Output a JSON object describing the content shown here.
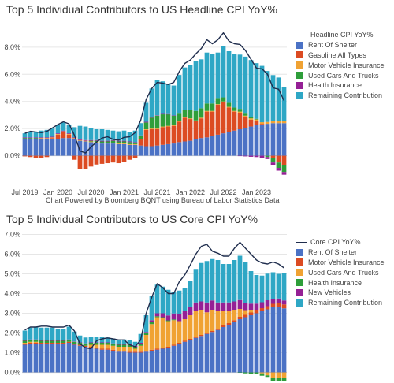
{
  "chart_data": [
    {
      "type": "bar",
      "title": "Top 5 Individual Contributors to US Headline CPI YoY%",
      "xlabel": "",
      "ylabel": "",
      "ylim": [
        -2.0,
        9.5
      ],
      "yticks": [
        0,
        2,
        4,
        6,
        8
      ],
      "tick_suffix": "%",
      "x_ticks": [
        "Jul 2019",
        "Jan 2020",
        "Jul 2020",
        "Jan 2021",
        "Jul 2021",
        "Jan 2022",
        "Jul 2022",
        "Jan 2023"
      ],
      "x_tick_index": [
        0,
        6,
        12,
        18,
        24,
        30,
        36,
        42
      ],
      "categories": [
        "2019-06",
        "2019-07",
        "2019-08",
        "2019-09",
        "2019-10",
        "2019-11",
        "2019-12",
        "2020-01",
        "2020-02",
        "2020-03",
        "2020-04",
        "2020-05",
        "2020-06",
        "2020-07",
        "2020-08",
        "2020-09",
        "2020-10",
        "2020-11",
        "2020-12",
        "2021-01",
        "2021-02",
        "2021-03",
        "2021-04",
        "2021-05",
        "2021-06",
        "2021-07",
        "2021-08",
        "2021-09",
        "2021-10",
        "2021-11",
        "2021-12",
        "2022-01",
        "2022-02",
        "2022-03",
        "2022-04",
        "2022-05",
        "2022-06",
        "2022-07",
        "2022-08",
        "2022-09",
        "2022-10",
        "2022-11",
        "2022-12",
        "2023-01",
        "2023-02",
        "2023-03",
        "2023-04",
        "2023-05"
      ],
      "grid": true,
      "legend_position": "right",
      "series": [
        {
          "name": "Rent Of Shelter",
          "color": "#4b72c5",
          "values": [
            1.2,
            1.2,
            1.2,
            1.25,
            1.25,
            1.25,
            1.25,
            1.3,
            1.3,
            1.25,
            1.1,
            1.05,
            1.0,
            0.95,
            0.9,
            0.9,
            0.9,
            0.85,
            0.85,
            0.8,
            0.8,
            0.75,
            0.7,
            0.7,
            0.75,
            0.8,
            0.85,
            0.9,
            1.0,
            1.05,
            1.1,
            1.2,
            1.3,
            1.35,
            1.45,
            1.55,
            1.65,
            1.75,
            1.85,
            1.95,
            2.05,
            2.15,
            2.25,
            2.3,
            2.35,
            2.4,
            2.4,
            2.4
          ]
        },
        {
          "name": "Gasoline All Types",
          "color": "#dc4b22",
          "values": [
            -0.05,
            -0.1,
            -0.15,
            -0.15,
            -0.1,
            0.05,
            0.3,
            0.45,
            0.25,
            -0.3,
            -1.0,
            -1.0,
            -0.8,
            -0.65,
            -0.6,
            -0.55,
            -0.5,
            -0.55,
            -0.45,
            -0.3,
            -0.2,
            0.45,
            1.2,
            1.25,
            1.2,
            1.3,
            1.3,
            1.3,
            1.5,
            1.75,
            1.6,
            1.35,
            1.45,
            1.9,
            1.8,
            2.2,
            2.3,
            1.8,
            1.4,
            1.2,
            0.8,
            0.5,
            0.3,
            0.05,
            0.0,
            -0.2,
            -0.5,
            -0.7
          ]
        },
        {
          "name": "Motor Vehicle Insurance",
          "color": "#f0a233",
          "values": [
            0.05,
            0.05,
            0.05,
            0.05,
            0.05,
            0.05,
            0.05,
            0.05,
            0.05,
            0.05,
            0.05,
            0.05,
            0.05,
            0.05,
            0.05,
            0.05,
            0.05,
            0.05,
            0.05,
            0.05,
            0.05,
            0.05,
            0.05,
            0.05,
            0.05,
            0.05,
            0.05,
            0.05,
            0.05,
            0.05,
            0.05,
            0.05,
            0.05,
            0.05,
            0.05,
            0.05,
            0.05,
            0.05,
            0.05,
            0.1,
            0.1,
            0.1,
            0.12,
            0.12,
            0.14,
            0.14,
            0.16,
            0.16
          ]
        },
        {
          "name": "Used Cars And Trucks",
          "color": "#2e9e3a",
          "values": [
            0.05,
            0.05,
            0.05,
            0.0,
            0.0,
            0.0,
            0.0,
            0.0,
            0.0,
            0.0,
            0.0,
            0.0,
            0.05,
            0.1,
            0.1,
            0.1,
            0.15,
            0.15,
            0.15,
            0.15,
            0.1,
            0.2,
            0.5,
            0.8,
            0.95,
            0.9,
            0.85,
            0.7,
            0.55,
            0.55,
            0.65,
            0.7,
            0.7,
            0.55,
            0.55,
            0.45,
            0.3,
            0.3,
            0.25,
            0.2,
            0.15,
            0.1,
            0.05,
            0.0,
            -0.1,
            -0.3,
            -0.4,
            -0.5
          ]
        },
        {
          "name": "Health Insurance",
          "color": "#952095",
          "values": [
            0.05,
            0.05,
            0.05,
            0.05,
            0.05,
            0.05,
            0.05,
            0.05,
            0.05,
            0.05,
            0.05,
            0.05,
            0.05,
            0.05,
            0.05,
            0.05,
            0.05,
            0.05,
            0.05,
            0.05,
            0.05,
            0.05,
            0.05,
            0.05,
            0.03,
            0.03,
            0.02,
            0.02,
            0.0,
            0.0,
            0.0,
            0.0,
            0.0,
            0.0,
            0.0,
            0.0,
            0.0,
            0.0,
            0.0,
            -0.02,
            -0.05,
            -0.08,
            -0.1,
            -0.15,
            -0.15,
            -0.18,
            -0.2,
            -0.2
          ]
        },
        {
          "name": "Remaining Contribution",
          "color": "#2ea7c5",
          "values": [
            0.3,
            0.4,
            0.4,
            0.5,
            0.55,
            0.6,
            0.6,
            0.6,
            0.65,
            0.75,
            1.0,
            1.0,
            0.9,
            0.8,
            0.85,
            0.8,
            0.7,
            0.7,
            0.75,
            0.7,
            0.85,
            0.9,
            1.4,
            2.1,
            2.6,
            2.4,
            2.2,
            2.2,
            2.85,
            3.1,
            3.3,
            3.7,
            3.6,
            3.75,
            3.65,
            3.35,
            3.8,
            3.8,
            3.95,
            4.0,
            4.2,
            4.2,
            4.1,
            4.15,
            3.75,
            3.4,
            3.2,
            2.5
          ]
        },
        {
          "name": "Headline CPI YoY%",
          "type": "line",
          "color": "#1f2d4d",
          "values": [
            1.65,
            1.8,
            1.75,
            1.7,
            1.8,
            2.05,
            2.3,
            2.5,
            2.35,
            1.5,
            0.35,
            0.2,
            0.65,
            1.0,
            1.3,
            1.4,
            1.2,
            1.15,
            1.35,
            1.4,
            1.7,
            2.6,
            4.15,
            4.95,
            5.4,
            5.35,
            5.25,
            5.4,
            6.2,
            6.8,
            7.05,
            7.5,
            7.9,
            8.55,
            8.25,
            8.55,
            9.05,
            8.45,
            8.25,
            8.2,
            7.75,
            7.1,
            6.45,
            6.4,
            6.0,
            5.0,
            4.9,
            4.05
          ]
        }
      ]
    },
    {
      "type": "bar",
      "title": "Top 5 Individual Contributors to US Core CPI YoY%",
      "xlabel": "",
      "ylabel": "",
      "ylim": [
        -0.3,
        7.3
      ],
      "yticks": [
        0,
        1,
        2,
        3,
        4,
        5,
        6,
        7
      ],
      "tick_suffix": "%",
      "categories": [
        "2019-06",
        "2019-07",
        "2019-08",
        "2019-09",
        "2019-10",
        "2019-11",
        "2019-12",
        "2020-01",
        "2020-02",
        "2020-03",
        "2020-04",
        "2020-05",
        "2020-06",
        "2020-07",
        "2020-08",
        "2020-09",
        "2020-10",
        "2020-11",
        "2020-12",
        "2021-01",
        "2021-02",
        "2021-03",
        "2021-04",
        "2021-05",
        "2021-06",
        "2021-07",
        "2021-08",
        "2021-09",
        "2021-10",
        "2021-11",
        "2021-12",
        "2022-01",
        "2022-02",
        "2022-03",
        "2022-04",
        "2022-05",
        "2022-06",
        "2022-07",
        "2022-08",
        "2022-09",
        "2022-10",
        "2022-11",
        "2022-12",
        "2023-01",
        "2023-02",
        "2023-03",
        "2023-04",
        "2023-05"
      ],
      "grid": true,
      "legend_position": "right",
      "series": [
        {
          "name": "Rent Of Shelter",
          "color": "#4b72c5",
          "values": [
            1.4,
            1.45,
            1.45,
            1.45,
            1.45,
            1.45,
            1.45,
            1.45,
            1.5,
            1.4,
            1.35,
            1.3,
            1.25,
            1.2,
            1.15,
            1.15,
            1.1,
            1.05,
            1.05,
            1.0,
            1.0,
            1.0,
            1.05,
            1.1,
            1.15,
            1.2,
            1.25,
            1.35,
            1.45,
            1.55,
            1.65,
            1.75,
            1.85,
            1.95,
            2.05,
            2.15,
            2.3,
            2.4,
            2.55,
            2.7,
            2.8,
            2.9,
            3.0,
            3.1,
            3.2,
            3.3,
            3.3,
            3.25
          ]
        },
        {
          "name": "Motor Vehicle Insurance",
          "color": "#dc4b22",
          "values": [
            0.05,
            0.05,
            0.05,
            0.05,
            0.05,
            0.05,
            0.05,
            0.05,
            0.05,
            0.05,
            0.05,
            0.05,
            0.05,
            0.05,
            0.05,
            0.05,
            0.05,
            0.05,
            0.05,
            0.05,
            0.05,
            0.05,
            0.05,
            0.05,
            0.05,
            0.05,
            0.05,
            0.05,
            0.05,
            0.05,
            0.05,
            0.05,
            0.05,
            0.05,
            0.05,
            0.05,
            0.1,
            0.1,
            0.1,
            0.12,
            0.12,
            0.14,
            0.14,
            0.16,
            0.16,
            0.18,
            0.2,
            0.2
          ]
        },
        {
          "name": "Used Cars And Trucks",
          "color": "#f0a233",
          "values": [
            0.05,
            0.05,
            0.05,
            0.0,
            0.0,
            0.0,
            0.0,
            0.0,
            0.0,
            0.0,
            0.0,
            0.0,
            0.1,
            0.15,
            0.2,
            0.2,
            0.2,
            0.2,
            0.2,
            0.25,
            0.15,
            0.3,
            0.8,
            1.3,
            1.6,
            1.5,
            1.3,
            1.25,
            1.1,
            1.1,
            1.2,
            1.3,
            1.25,
            1.05,
            1.05,
            0.9,
            0.7,
            0.6,
            0.5,
            0.4,
            0.2,
            0.1,
            0.0,
            -0.05,
            -0.15,
            -0.3,
            -0.3,
            -0.3
          ]
        },
        {
          "name": "Health Insurance",
          "color": "#2e9e3a",
          "values": [
            0.1,
            0.1,
            0.1,
            0.1,
            0.1,
            0.1,
            0.1,
            0.1,
            0.1,
            0.1,
            0.1,
            0.1,
            0.1,
            0.1,
            0.1,
            0.1,
            0.1,
            0.1,
            0.1,
            0.1,
            0.1,
            0.1,
            0.1,
            0.1,
            0.05,
            0.05,
            0.04,
            0.04,
            0.0,
            0.0,
            0.0,
            0.0,
            0.0,
            0.0,
            0.0,
            0.0,
            0.0,
            0.0,
            0.0,
            -0.02,
            -0.05,
            -0.08,
            -0.1,
            -0.12,
            -0.12,
            -0.12,
            -0.12,
            -0.12
          ]
        },
        {
          "name": "New Vehicles",
          "color": "#952095",
          "values": [
            0.02,
            0.02,
            0.02,
            0.02,
            0.02,
            0.02,
            0.02,
            0.02,
            0.02,
            0.02,
            0.02,
            0.02,
            0.02,
            0.02,
            0.02,
            0.02,
            0.02,
            0.02,
            0.02,
            0.05,
            0.05,
            0.05,
            0.05,
            0.1,
            0.15,
            0.2,
            0.25,
            0.3,
            0.35,
            0.4,
            0.4,
            0.45,
            0.45,
            0.5,
            0.5,
            0.45,
            0.45,
            0.45,
            0.45,
            0.45,
            0.4,
            0.35,
            0.35,
            0.3,
            0.3,
            0.25,
            0.25,
            0.2
          ]
        },
        {
          "name": "Remaining Contribution",
          "color": "#2ea7c5",
          "values": [
            0.5,
            0.6,
            0.65,
            0.65,
            0.65,
            0.65,
            0.6,
            0.6,
            0.65,
            0.5,
            0.35,
            0.3,
            0.3,
            0.3,
            0.3,
            0.25,
            0.25,
            0.25,
            0.25,
            0.2,
            0.2,
            0.45,
            0.85,
            1.25,
            1.45,
            1.35,
            1.3,
            1.1,
            1.2,
            1.2,
            1.35,
            1.7,
            1.95,
            2.1,
            2.1,
            2.15,
            1.95,
            1.95,
            2.1,
            2.25,
            2.1,
            1.65,
            1.45,
            1.35,
            1.35,
            1.35,
            1.25,
            1.4
          ]
        },
        {
          "name": "Core CPI YoY%",
          "type": "line",
          "color": "#1f2d4d",
          "values": [
            2.15,
            2.3,
            2.3,
            2.35,
            2.35,
            2.3,
            2.3,
            2.3,
            2.4,
            2.1,
            1.45,
            1.25,
            1.2,
            1.6,
            1.7,
            1.75,
            1.7,
            1.65,
            1.65,
            1.4,
            1.3,
            1.65,
            3.0,
            3.8,
            4.5,
            4.3,
            4.0,
            4.0,
            4.6,
            4.95,
            5.45,
            6.0,
            6.4,
            6.5,
            6.15,
            6.05,
            5.9,
            5.9,
            6.3,
            6.6,
            6.3,
            6.0,
            5.7,
            5.55,
            5.5,
            5.6,
            5.5,
            5.3
          ]
        }
      ]
    }
  ],
  "source_note": "Chart Powered by Bloomberg BQNT using Bureau of Labor Statistics Data"
}
